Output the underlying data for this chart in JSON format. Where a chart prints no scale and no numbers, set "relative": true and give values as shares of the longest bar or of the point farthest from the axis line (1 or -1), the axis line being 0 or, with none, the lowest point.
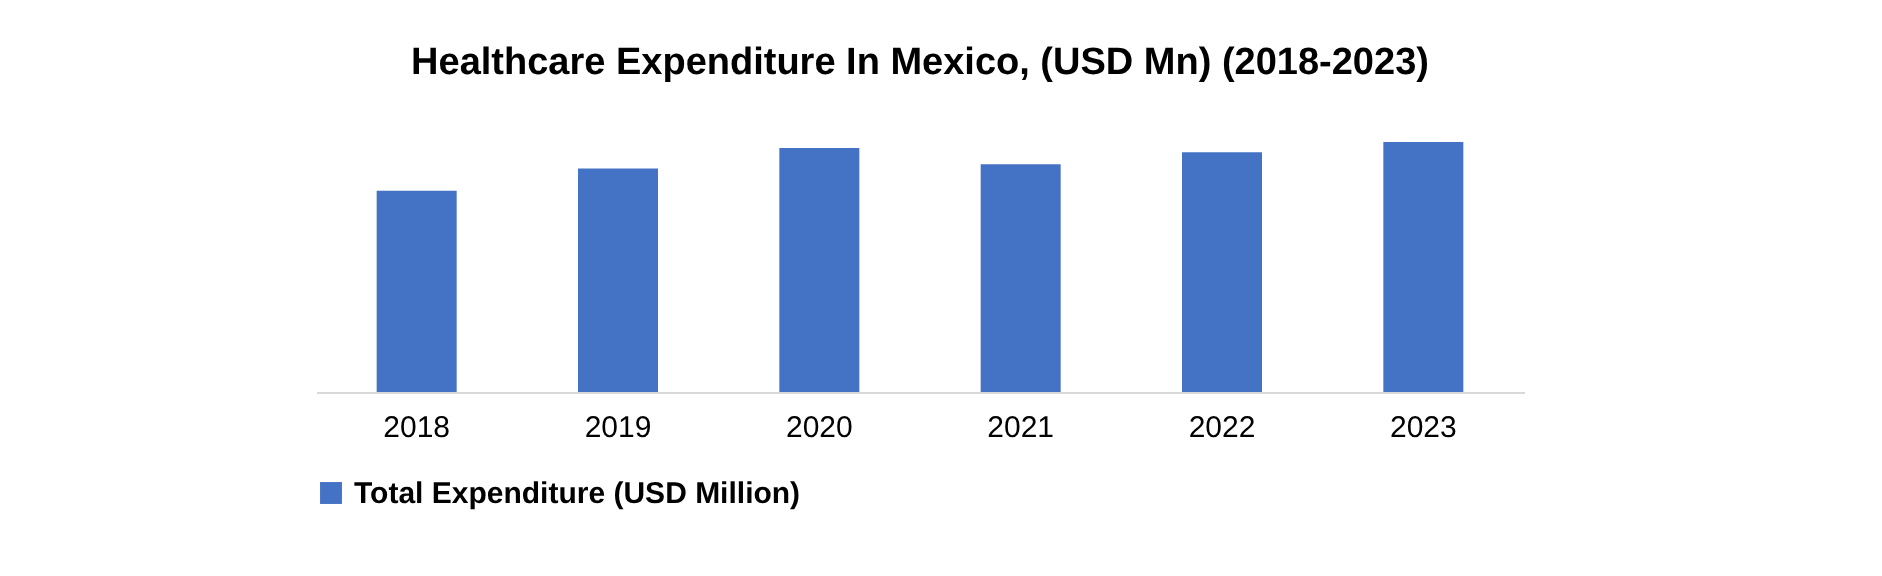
{
  "chart_data": {
    "type": "bar",
    "title": "Healthcare Expenditure In Mexico, (USD Mn)  (2018-2023)",
    "categories": [
      "2018",
      "2019",
      "2020",
      "2021",
      "2022",
      "2023"
    ],
    "series": [
      {
        "name": "Total Expenditure (USD Million)",
        "color": "#4472c4",
        "values": [
          0.805,
          0.894,
          0.976,
          0.911,
          0.959,
          1.0
        ]
      }
    ],
    "relative": true,
    "legend": "bottom"
  }
}
